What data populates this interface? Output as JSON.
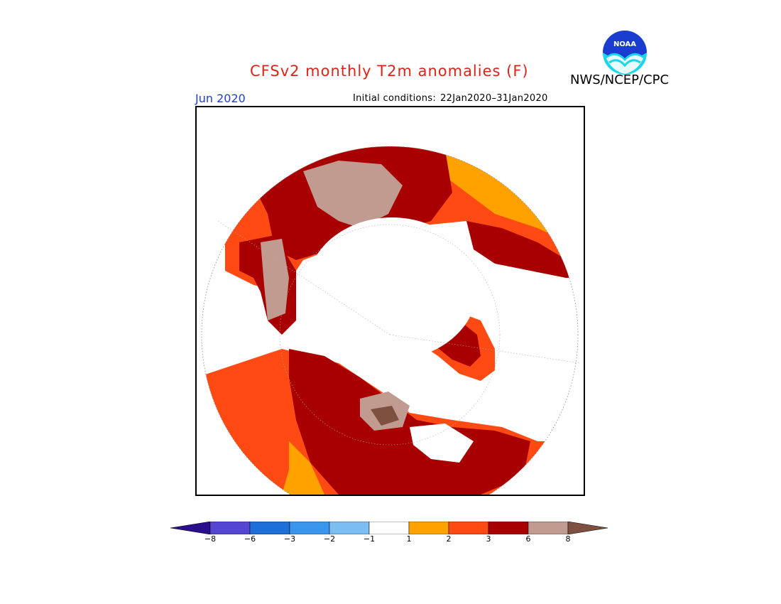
{
  "header": {
    "title": "CFSv2 monthly T2m anomalies (F)",
    "agency": "NWS/NCEP/CPC",
    "logo_text": "NOAA",
    "month": "Jun 2020",
    "initial_conditions_label": "Initial conditions:",
    "initial_conditions_range": "22Jan2020–31Jan2020"
  },
  "map": {
    "projection": "north polar stereographic",
    "variable": "2m temperature anomaly",
    "units": "F"
  },
  "legend": {
    "ticks": [
      "−8",
      "−6",
      "−3",
      "−2",
      "−1",
      "1",
      "2",
      "3",
      "6",
      "8"
    ],
    "colors": [
      "#2a0f8c",
      "#5546d2",
      "#1e6fd8",
      "#3a96ec",
      "#7cbdf2",
      "#ffffff",
      "#ffa200",
      "#ff4a13",
      "#a80000",
      "#c19a90",
      "#7d5040"
    ]
  }
}
